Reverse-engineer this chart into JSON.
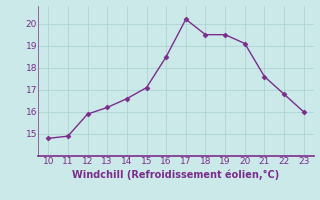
{
  "x": [
    10,
    11,
    12,
    13,
    14,
    15,
    16,
    17,
    18,
    19,
    20,
    21,
    22,
    23
  ],
  "y": [
    14.8,
    14.9,
    15.9,
    16.2,
    16.6,
    17.1,
    18.5,
    20.2,
    19.5,
    19.5,
    19.1,
    17.6,
    16.8,
    16.0
  ],
  "line_color": "#7b2d8b",
  "marker": "D",
  "marker_size": 2.5,
  "xlabel": "Windchill (Refroidissement éolien,°C)",
  "xlim": [
    9.5,
    23.5
  ],
  "ylim": [
    14.0,
    20.8
  ],
  "xticks": [
    10,
    11,
    12,
    13,
    14,
    15,
    16,
    17,
    18,
    19,
    20,
    21,
    22,
    23
  ],
  "yticks": [
    15,
    16,
    17,
    18,
    19,
    20
  ],
  "bg_color": "#cce9e9",
  "grid_color": "#add4d4",
  "tick_color": "#7b2d8b",
  "label_color": "#7b2d8b",
  "font_size": 6.5,
  "xlabel_fontsize": 7.0,
  "spine_color": "#7b2d8b",
  "linewidth": 1.0
}
